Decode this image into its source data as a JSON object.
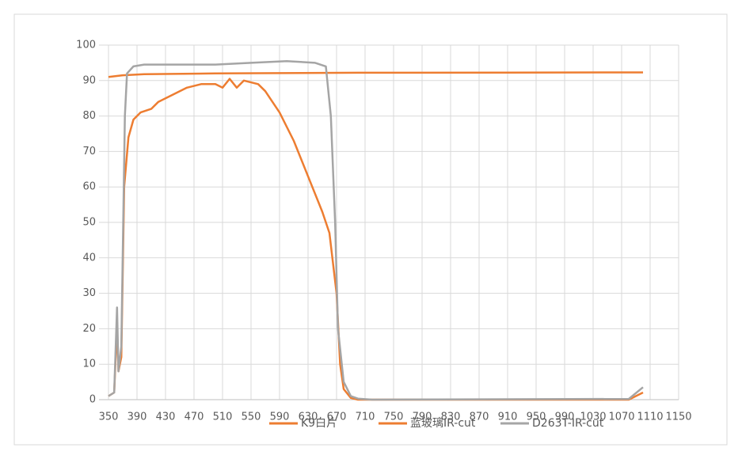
{
  "chart_data": {
    "type": "line",
    "xlim": [
      350,
      1150
    ],
    "xticks": [
      350,
      390,
      430,
      470,
      510,
      550,
      590,
      630,
      670,
      710,
      750,
      790,
      830,
      870,
      910,
      950,
      990,
      1030,
      1070,
      1110,
      1150
    ],
    "ylim": [
      0,
      100
    ],
    "yticks": [
      0,
      10,
      20,
      30,
      40,
      50,
      60,
      70,
      80,
      90,
      100
    ],
    "grid": true,
    "legend": "bottom",
    "series": [
      {
        "name": "K9白片",
        "color": "#ed7d31",
        "x": [
          350,
          370,
          400,
          500,
          700,
          1100
        ],
        "values": [
          91,
          91.5,
          91.8,
          92,
          92.2,
          92.3
        ]
      },
      {
        "name": "蓝玻璃IR-cut",
        "color": "#ed7d31",
        "x": [
          350,
          358,
          362,
          364,
          368,
          372,
          378,
          385,
          395,
          410,
          420,
          440,
          460,
          480,
          500,
          510,
          520,
          530,
          540,
          560,
          570,
          590,
          610,
          630,
          650,
          660,
          670,
          675,
          680,
          690,
          700,
          1080,
          1100
        ],
        "values": [
          1,
          2,
          21,
          8,
          12,
          60,
          74,
          79,
          81,
          82,
          84,
          86,
          88,
          89,
          89,
          88,
          90.5,
          88,
          90,
          89,
          87,
          81,
          73,
          63,
          53,
          47,
          30,
          10,
          3,
          0.5,
          0,
          0,
          2
        ]
      },
      {
        "name": "D263T-IR-cut",
        "color": "#a5a5a5",
        "x": [
          350,
          358,
          362,
          364,
          368,
          373,
          376,
          385,
          400,
          450,
          500,
          550,
          600,
          640,
          655,
          662,
          668,
          672,
          680,
          690,
          700,
          720,
          1080,
          1100
        ],
        "values": [
          1,
          2,
          26,
          8,
          15,
          80,
          92,
          94,
          94.5,
          94.5,
          94.5,
          95,
          95.5,
          95,
          94,
          80,
          50,
          20,
          5,
          1,
          0.3,
          0,
          0.2,
          3.5
        ]
      }
    ]
  }
}
